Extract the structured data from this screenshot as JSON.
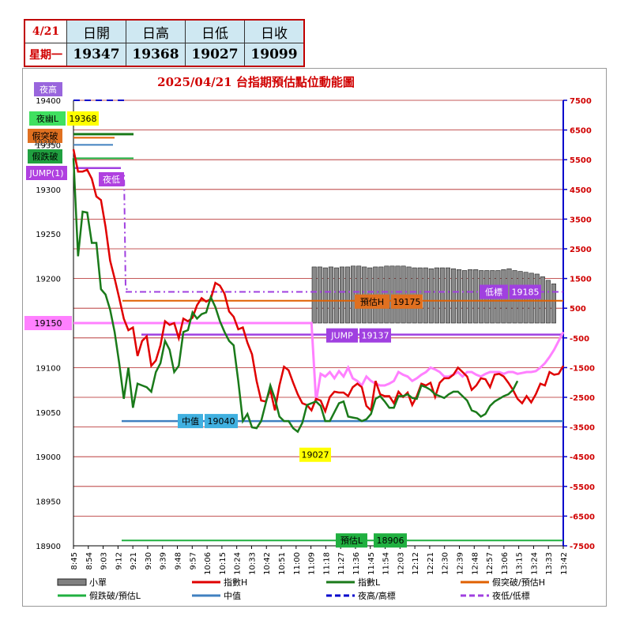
{
  "summary": {
    "date": "4/21",
    "weekday": "星期一",
    "headers": [
      "日開",
      "日高",
      "日低",
      "日收"
    ],
    "values": [
      "19347",
      "19368",
      "19027",
      "19099"
    ]
  },
  "chart_data": {
    "type": "line",
    "title": "2025/04/21   台指期預估點位動能圖",
    "y_left": {
      "min": 18900,
      "max": 19400,
      "step": 50,
      "ticks": [
        "19400",
        "19350",
        "19300",
        "19250",
        "19200",
        "19150",
        "19100",
        "19050",
        "19000",
        "18950",
        "18900"
      ]
    },
    "y_right": {
      "min": -7500,
      "max": 7500,
      "step": 1000,
      "ticks": [
        "7500",
        "6500",
        "5500",
        "4500",
        "3500",
        "2500",
        "1500",
        "500",
        "-500",
        "-1500",
        "-2500",
        "-3500",
        "-4500",
        "-5500",
        "-6500",
        "-7500"
      ]
    },
    "x_ticks": [
      "8:45",
      "8:54",
      "9:03",
      "9:12",
      "9:21",
      "9:30",
      "9:39",
      "9:48",
      "9:57",
      "10:06",
      "10:15",
      "10:24",
      "10:33",
      "10:42",
      "10:51",
      "11:00",
      "11:09",
      "11:18",
      "11:27",
      "11:36",
      "11:45",
      "11:54",
      "12:03",
      "12:12",
      "12:21",
      "12:30",
      "12:39",
      "12:48",
      "12:57",
      "13:06",
      "13:15",
      "13:24",
      "13:33",
      "13:42"
    ],
    "series": [
      {
        "name": "小單",
        "type": "bar",
        "color": "#808080",
        "x_start": 52,
        "x_end": 68,
        "values": [
          19213,
          19213,
          19212,
          19213,
          19212,
          19213,
          19213,
          19214,
          19214,
          19213,
          19212,
          19213,
          19213,
          19214,
          19214,
          19214,
          19214,
          19213,
          19212,
          19212,
          19212,
          19211,
          19212,
          19212,
          19212,
          19211,
          19210,
          19209,
          19210,
          19210,
          19209,
          19209,
          19209,
          19209,
          19210,
          19211,
          19209,
          19208,
          19207,
          19206,
          19205,
          19202,
          19198,
          19194
        ]
      },
      {
        "name": "指數H",
        "color": "#e00000",
        "values": [
          19345,
          19320,
          19320,
          19322,
          19312,
          19292,
          19288,
          19258,
          19220,
          19200,
          19178,
          19155,
          19142,
          19145,
          19113,
          19130,
          19135,
          19102,
          19108,
          19125,
          19152,
          19148,
          19150,
          19133,
          19155,
          19152,
          19156,
          19170,
          19178,
          19174,
          19177,
          19195,
          19192,
          19183,
          19163,
          19157,
          19143,
          19145,
          19128,
          19115,
          19085,
          19063,
          19062,
          19075,
          19052,
          19080,
          19101,
          19097,
          19083,
          19070,
          19060,
          19058,
          19052,
          19065,
          19063,
          19051,
          19067,
          19073,
          19072,
          19072,
          19068,
          19078,
          19082,
          19078,
          19057,
          19052,
          19085,
          19070,
          19068,
          19068,
          19060,
          19073,
          19067,
          19072,
          19058,
          19068,
          19082,
          19080,
          19083,
          19067,
          19083,
          19088,
          19088,
          19092,
          19100,
          19095,
          19090,
          19075,
          19080,
          19088,
          19087,
          19078,
          19092,
          19093,
          19090,
          19083,
          19075,
          19065,
          19060,
          19068,
          19061,
          19070,
          19082,
          19080,
          19095,
          19092,
          19093,
          19102
        ]
      },
      {
        "name": "指數L",
        "color": "#1a7a1a",
        "values": [
          19335,
          19225,
          19275,
          19274,
          19240,
          19240,
          19188,
          19182,
          19165,
          19140,
          19105,
          19065,
          19100,
          19055,
          19082,
          19080,
          19078,
          19073,
          19095,
          19105,
          19130,
          19120,
          19095,
          19102,
          19140,
          19142,
          19162,
          19155,
          19160,
          19162,
          19179,
          19168,
          19152,
          19140,
          19130,
          19125,
          19085,
          19040,
          19048,
          19033,
          19032,
          19040,
          19060,
          19080,
          19065,
          19045,
          19040,
          19040,
          19032,
          19028,
          19038,
          19058,
          19060,
          19062,
          19057,
          19040,
          19040,
          19050,
          19060,
          19062,
          19045,
          19044,
          19043,
          19040,
          19042,
          19048,
          19065,
          19068,
          19062,
          19055,
          19055,
          19068,
          19068,
          19070,
          19066,
          19065,
          19080,
          19078,
          19075,
          19070,
          19068,
          19066,
          19070,
          19073,
          19073,
          19068,
          19063,
          19052,
          19050,
          19045,
          19048,
          19057,
          19062,
          19065,
          19068,
          19070,
          19075,
          19085
        ]
      },
      {
        "name": "夜低/低標",
        "color": "#a040e0",
        "dashed": true
      },
      {
        "name": "中值",
        "color": "#4080c0",
        "level": 19040
      },
      {
        "name": "夜高/高標",
        "color": "#0000cc",
        "dashed": true
      }
    ],
    "levels": {
      "night_high": {
        "label": "夜高",
        "value": 19400
      },
      "night_session_L": {
        "label": "夜幽L",
        "value": "19368"
      },
      "fake_breakout": {
        "label": "假突破",
        "value": "19350"
      },
      "fake_breakdown": {
        "label": "假跌破",
        "value": 19335
      },
      "jump1": {
        "label": "JUMP(1)",
        "value": 19322
      },
      "night_low": {
        "label": "夜低",
        "value": 19318
      },
      "forecast_H": {
        "label": "預估H",
        "value": "19175"
      },
      "low_target": {
        "label": "低標",
        "value": "19185"
      },
      "jump": {
        "label": "JUMP",
        "value": "19137"
      },
      "left_19150": {
        "label": "19150",
        "value": 19150
      },
      "median": {
        "label": "中值",
        "value": "19040"
      },
      "day_low": {
        "label": "19027",
        "value": 19027
      },
      "forecast_L": {
        "label": "預估L",
        "value": "18906"
      }
    },
    "legend": [
      {
        "name": "小單",
        "color": "#808080",
        "style": "bar"
      },
      {
        "name": "指數H",
        "color": "#e00000",
        "style": "line"
      },
      {
        "name": "指數L",
        "color": "#1a7a1a",
        "style": "line"
      },
      {
        "name": "假突破/預估H",
        "color": "#e06000",
        "style": "line"
      },
      {
        "name": "假跌破/預估L",
        "color": "#20b040",
        "style": "line"
      },
      {
        "name": "中值",
        "color": "#4080c0",
        "style": "line"
      },
      {
        "name": "夜高/高標",
        "color": "#0000cc",
        "style": "dash"
      },
      {
        "name": "夜低/低標",
        "color": "#a040e0",
        "style": "dash"
      }
    ]
  }
}
